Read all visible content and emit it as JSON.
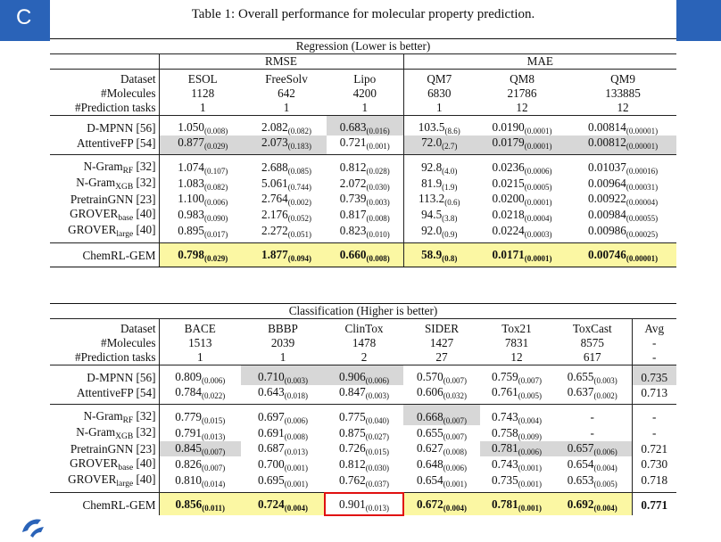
{
  "slide": {
    "letter": "C"
  },
  "caption": "Table 1: Overall performance for molecular property prediction.",
  "regression": {
    "title": "Regression (Lower is better)",
    "groups": [
      "RMSE",
      "MAE"
    ],
    "header": {
      "dataset": [
        "Dataset",
        "ESOL",
        "FreeSolv",
        "Lipo",
        "QM7",
        "QM8",
        "QM9"
      ],
      "molecules": [
        "#Molecules",
        "1128",
        "642",
        "4200",
        "6830",
        "21786",
        "133885"
      ],
      "tasks": [
        "#Prediction tasks",
        "1",
        "1",
        "1",
        "1",
        "12",
        "12"
      ]
    },
    "rows": [
      {
        "name": "D-MPNN [56]",
        "cells": [
          [
            "1.050",
            "(0.008)"
          ],
          [
            "2.082",
            "(0.082)"
          ],
          [
            "0.683",
            "(0.016)"
          ],
          [
            "103.5",
            "(8.6)"
          ],
          [
            "0.0190",
            "(0.0001)"
          ],
          [
            "0.00814",
            "(0.00001)"
          ]
        ]
      },
      {
        "name": "AttentiveFP [54]",
        "cells": [
          [
            "0.877",
            "(0.029)"
          ],
          [
            "2.073",
            "(0.183)"
          ],
          [
            "0.721",
            "(0.001)"
          ],
          [
            "72.0",
            "(2.7)"
          ],
          [
            "0.0179",
            "(0.0001)"
          ],
          [
            "0.00812",
            "(0.00001)"
          ]
        ]
      },
      {
        "name": "N-Gram",
        "sub": "RF",
        "ref": " [32]",
        "cells": [
          [
            "1.074",
            "(0.107)"
          ],
          [
            "2.688",
            "(0.085)"
          ],
          [
            "0.812",
            "(0.028)"
          ],
          [
            "92.8",
            "(4.0)"
          ],
          [
            "0.0236",
            "(0.0006)"
          ],
          [
            "0.01037",
            "(0.00016)"
          ]
        ]
      },
      {
        "name": "N-Gram",
        "sub": "XGB",
        "ref": " [32]",
        "cells": [
          [
            "1.083",
            "(0.082)"
          ],
          [
            "5.061",
            "(0.744)"
          ],
          [
            "2.072",
            "(0.030)"
          ],
          [
            "81.9",
            "(1.9)"
          ],
          [
            "0.0215",
            "(0.0005)"
          ],
          [
            "0.00964",
            "(0.00031)"
          ]
        ]
      },
      {
        "name": "PretrainGNN [23]",
        "cells": [
          [
            "1.100",
            "(0.006)"
          ],
          [
            "2.764",
            "(0.002)"
          ],
          [
            "0.739",
            "(0.003)"
          ],
          [
            "113.2",
            "(0.6)"
          ],
          [
            "0.0200",
            "(0.0001)"
          ],
          [
            "0.00922",
            "(0.00004)"
          ]
        ]
      },
      {
        "name": "GROVER",
        "sub": "base",
        "ref": " [40]",
        "cells": [
          [
            "0.983",
            "(0.090)"
          ],
          [
            "2.176",
            "(0.052)"
          ],
          [
            "0.817",
            "(0.008)"
          ],
          [
            "94.5",
            "(3.8)"
          ],
          [
            "0.0218",
            "(0.0004)"
          ],
          [
            "0.00984",
            "(0.00055)"
          ]
        ]
      },
      {
        "name": "GROVER",
        "sub": "large",
        "ref": " [40]",
        "cells": [
          [
            "0.895",
            "(0.017)"
          ],
          [
            "2.272",
            "(0.051)"
          ],
          [
            "0.823",
            "(0.010)"
          ],
          [
            "92.0",
            "(0.9)"
          ],
          [
            "0.0224",
            "(0.0003)"
          ],
          [
            "0.00986",
            "(0.00025)"
          ]
        ]
      },
      {
        "name": "ChemRL-GEM",
        "cells": [
          [
            "0.798",
            "(0.029)"
          ],
          [
            "1.877",
            "(0.094)"
          ],
          [
            "0.660",
            "(0.008)"
          ],
          [
            "58.9",
            "(0.8)"
          ],
          [
            "0.0171",
            "(0.0001)"
          ],
          [
            "0.00746",
            "(0.00001)"
          ]
        ]
      }
    ]
  },
  "classification": {
    "title": "Classification (Higher is better)",
    "header": {
      "dataset": [
        "Dataset",
        "BACE",
        "BBBP",
        "ClinTox",
        "SIDER",
        "Tox21",
        "ToxCast",
        "Avg"
      ],
      "molecules": [
        "#Molecules",
        "1513",
        "2039",
        "1478",
        "1427",
        "7831",
        "8575",
        "-"
      ],
      "tasks": [
        "#Prediction tasks",
        "1",
        "1",
        "2",
        "27",
        "12",
        "617",
        "-"
      ]
    },
    "rows": [
      {
        "name": "D-MPNN [56]",
        "cells": [
          [
            "0.809",
            "(0.006)"
          ],
          [
            "0.710",
            "(0.003)"
          ],
          [
            "0.906",
            "(0.006)"
          ],
          [
            "0.570",
            "(0.007)"
          ],
          [
            "0.759",
            "(0.007)"
          ],
          [
            "0.655",
            "(0.003)"
          ],
          [
            "0.735",
            ""
          ]
        ]
      },
      {
        "name": "AttentiveFP [54]",
        "cells": [
          [
            "0.784",
            "(0.022)"
          ],
          [
            "0.643",
            "(0.018)"
          ],
          [
            "0.847",
            "(0.003)"
          ],
          [
            "0.606",
            "(0.032)"
          ],
          [
            "0.761",
            "(0.005)"
          ],
          [
            "0.637",
            "(0.002)"
          ],
          [
            "0.713",
            ""
          ]
        ]
      },
      {
        "name": "N-Gram",
        "sub": "RF",
        "ref": " [32]",
        "cells": [
          [
            "0.779",
            "(0.015)"
          ],
          [
            "0.697",
            "(0.006)"
          ],
          [
            "0.775",
            "(0.040)"
          ],
          [
            "0.668",
            "(0.007)"
          ],
          [
            "0.743",
            "(0.004)"
          ],
          [
            "-",
            ""
          ],
          [
            "-",
            ""
          ]
        ]
      },
      {
        "name": "N-Gram",
        "sub": "XGB",
        "ref": " [32]",
        "cells": [
          [
            "0.791",
            "(0.013)"
          ],
          [
            "0.691",
            "(0.008)"
          ],
          [
            "0.875",
            "(0.027)"
          ],
          [
            "0.655",
            "(0.007)"
          ],
          [
            "0.758",
            "(0.009)"
          ],
          [
            "-",
            ""
          ],
          [
            "-",
            ""
          ]
        ]
      },
      {
        "name": "PretrainGNN [23]",
        "cells": [
          [
            "0.845",
            "(0.007)"
          ],
          [
            "0.687",
            "(0.013)"
          ],
          [
            "0.726",
            "(0.015)"
          ],
          [
            "0.627",
            "(0.008)"
          ],
          [
            "0.781",
            "(0.006)"
          ],
          [
            "0.657",
            "(0.006)"
          ],
          [
            "0.721",
            ""
          ]
        ]
      },
      {
        "name": "GROVER",
        "sub": "base",
        "ref": " [40]",
        "cells": [
          [
            "0.826",
            "(0.007)"
          ],
          [
            "0.700",
            "(0.001)"
          ],
          [
            "0.812",
            "(0.030)"
          ],
          [
            "0.648",
            "(0.006)"
          ],
          [
            "0.743",
            "(0.001)"
          ],
          [
            "0.654",
            "(0.004)"
          ],
          [
            "0.730",
            ""
          ]
        ]
      },
      {
        "name": "GROVER",
        "sub": "large",
        "ref": " [40]",
        "cells": [
          [
            "0.810",
            "(0.014)"
          ],
          [
            "0.695",
            "(0.001)"
          ],
          [
            "0.762",
            "(0.037)"
          ],
          [
            "0.654",
            "(0.001)"
          ],
          [
            "0.735",
            "(0.001)"
          ],
          [
            "0.653",
            "(0.005)"
          ],
          [
            "0.718",
            ""
          ]
        ]
      },
      {
        "name": "ChemRL-GEM",
        "cells": [
          [
            "0.856",
            "(0.011)"
          ],
          [
            "0.724",
            "(0.004)"
          ],
          [
            "0.901",
            "(0.013)"
          ],
          [
            "0.672",
            "(0.004)"
          ],
          [
            "0.781",
            "(0.001)"
          ],
          [
            "0.692",
            "(0.004)"
          ],
          [
            "0.771",
            ""
          ]
        ]
      }
    ]
  },
  "colors": {
    "highlight_gray": "#d7d7d7",
    "highlight_yellow": "#fbf7a3",
    "annotation_red": "#e01010",
    "slide_blue": "#2a63b8"
  }
}
